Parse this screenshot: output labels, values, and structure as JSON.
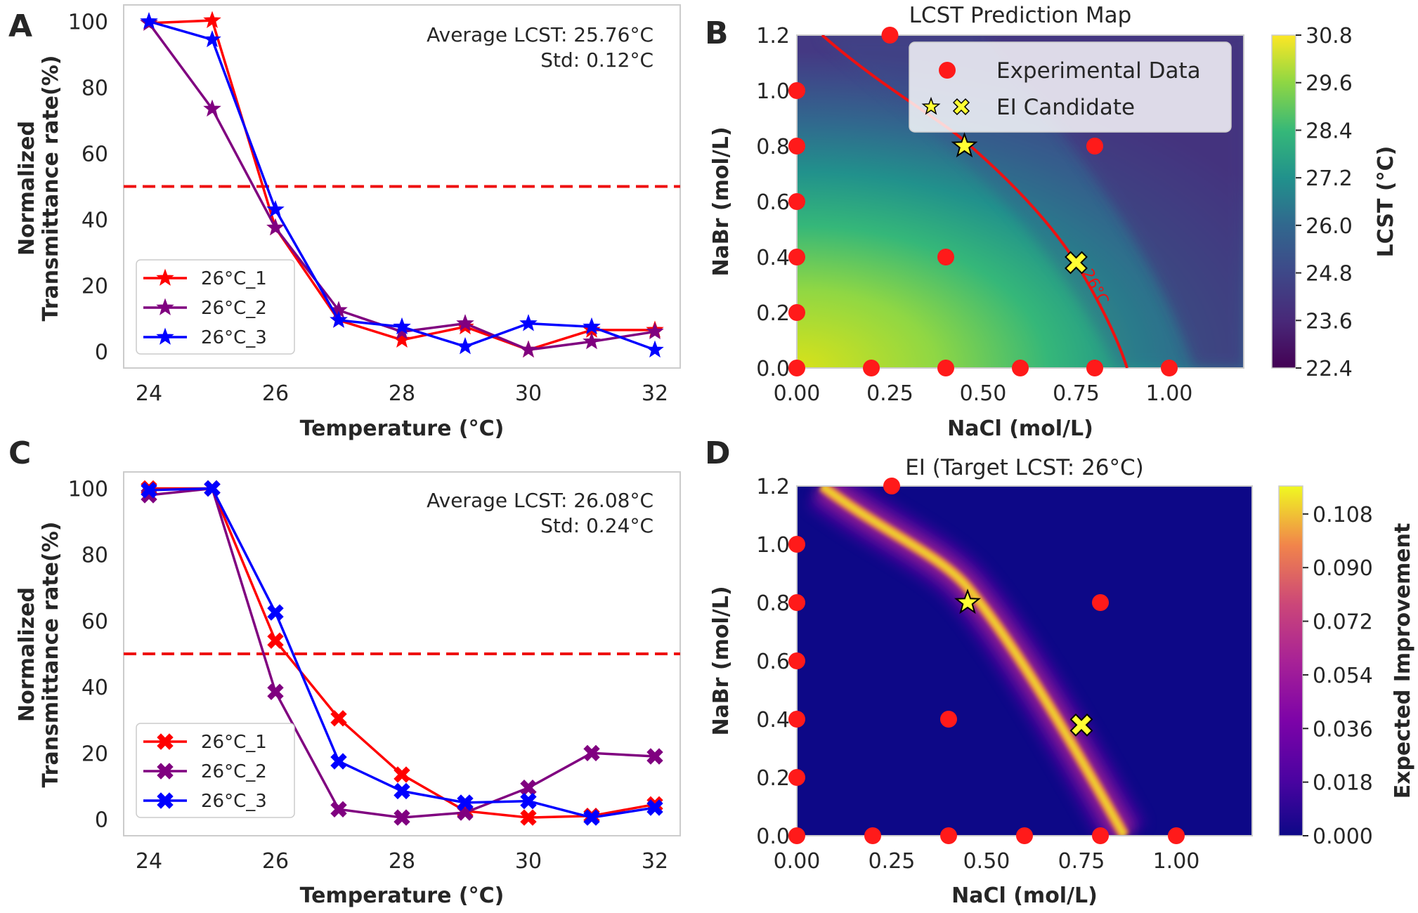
{
  "colors": {
    "red": "#ff0000",
    "purple": "#800080",
    "blue": "#0000ff",
    "ref_line": "#ee1111",
    "marker_data": "#ff1a1a",
    "candidate": "#ffff33"
  },
  "chart_data": [
    {
      "type": "line",
      "panel_label": "A",
      "x": [
        24,
        25,
        26,
        27,
        28,
        29,
        30,
        31,
        32
      ],
      "xlabel": "Temperature (°C)",
      "ylabel_line1": "Normalized",
      "ylabel_line2": "Transmittance rate(%)",
      "xticks": [
        "24",
        "26",
        "28",
        "30",
        "32"
      ],
      "yticks": [
        "0",
        "20",
        "40",
        "60",
        "80",
        "100"
      ],
      "xlim": [
        23.6,
        32.4
      ],
      "ylim": [
        -5,
        105
      ],
      "hline": 50,
      "marker": "star",
      "annotation_line1": "Average LCST: 25.76°C",
      "annotation_line2": "Std: 0.12°C",
      "series": [
        {
          "name": "26°C_1",
          "color": "#ff0000",
          "values": [
            99.5,
            100.3,
            37.5,
            9.5,
            3.5,
            7.5,
            0.5,
            6.5,
            6.5
          ]
        },
        {
          "name": "26°C_2",
          "color": "#800080",
          "values": [
            99.5,
            73.5,
            37.5,
            12.5,
            6,
            8.5,
            0.5,
            3,
            6
          ]
        },
        {
          "name": "26°C_3",
          "color": "#0000ff",
          "values": [
            100,
            94.5,
            43,
            9.5,
            7.5,
            1.5,
            8.5,
            7.5,
            0.5
          ]
        }
      ]
    },
    {
      "type": "line",
      "panel_label": "C",
      "x": [
        24,
        25,
        26,
        27,
        28,
        29,
        30,
        31,
        32
      ],
      "xlabel": "Temperature (°C)",
      "ylabel_line1": "Normalized",
      "ylabel_line2": "Transmittance rate(%)",
      "xticks": [
        "24",
        "26",
        "28",
        "30",
        "32"
      ],
      "yticks": [
        "0",
        "20",
        "40",
        "60",
        "80",
        "100"
      ],
      "xlim": [
        23.6,
        32.4
      ],
      "ylim": [
        -5,
        105
      ],
      "hline": 50,
      "marker": "x",
      "annotation_line1": "Average LCST: 26.08°C",
      "annotation_line2": "Std: 0.24°C",
      "series": [
        {
          "name": "26°C_1",
          "color": "#ff0000",
          "values": [
            100,
            100,
            54,
            30.5,
            13.5,
            2.5,
            0.5,
            1,
            4.5
          ]
        },
        {
          "name": "26°C_2",
          "color": "#800080",
          "values": [
            98,
            100,
            38.5,
            3,
            0.5,
            2,
            9.5,
            20,
            19
          ]
        },
        {
          "name": "26°C_3",
          "color": "#0000ff",
          "values": [
            99.5,
            100,
            62.5,
            17.5,
            8.5,
            5,
            5.5,
            0.5,
            3.5
          ]
        }
      ]
    },
    {
      "type": "contour",
      "panel_label": "B",
      "title": "LCST Prediction Map",
      "xlabel": "NaCl (mol/L)",
      "ylabel": "NaBr (mol/L)",
      "colorbar_label": "LCST (°C)",
      "xticks": [
        "0.00",
        "0.25",
        "0.50",
        "0.75",
        "1.00"
      ],
      "yticks": [
        "0.0",
        "0.2",
        "0.4",
        "0.6",
        "0.8",
        "1.0",
        "1.2"
      ],
      "colorbar_ticks": [
        "22.4",
        "23.6",
        "24.8",
        "26.0",
        "27.2",
        "28.4",
        "29.6",
        "30.8"
      ],
      "xlim": [
        0,
        1.2
      ],
      "ylim": [
        0,
        1.2
      ],
      "contour_label": "26°C",
      "legend": [
        "Experimental Data",
        "EI Candidate"
      ],
      "experimental_points": [
        [
          0,
          0
        ],
        [
          0.2,
          0
        ],
        [
          0.4,
          0
        ],
        [
          0.6,
          0
        ],
        [
          0.8,
          0
        ],
        [
          1.0,
          0
        ],
        [
          0,
          0.2
        ],
        [
          0,
          0.4
        ],
        [
          0,
          0.6
        ],
        [
          0,
          0.8
        ],
        [
          0,
          1.0
        ],
        [
          0.25,
          1.2
        ],
        [
          0.4,
          0.4
        ],
        [
          0.8,
          0.8
        ]
      ],
      "candidates": [
        {
          "marker": "star",
          "x": 0.45,
          "y": 0.8
        },
        {
          "marker": "x",
          "x": 0.75,
          "y": 0.38
        }
      ]
    },
    {
      "type": "heatmap",
      "panel_label": "D",
      "title": "EI (Target LCST: 26°C)",
      "xlabel": "NaCl (mol/L)",
      "ylabel": "NaBr (mol/L)",
      "colorbar_label": "Expected Improvement",
      "xticks": [
        "0.00",
        "0.25",
        "0.50",
        "0.75",
        "1.00"
      ],
      "yticks": [
        "0.0",
        "0.2",
        "0.4",
        "0.6",
        "0.8",
        "1.0",
        "1.2"
      ],
      "colorbar_ticks": [
        "0.000",
        "0.018",
        "0.036",
        "0.054",
        "0.072",
        "0.090",
        "0.108"
      ],
      "xlim": [
        0,
        1.2
      ],
      "ylim": [
        0,
        1.2
      ],
      "experimental_points": [
        [
          0,
          0
        ],
        [
          0.2,
          0
        ],
        [
          0.4,
          0
        ],
        [
          0.6,
          0
        ],
        [
          0.8,
          0
        ],
        [
          1.0,
          0
        ],
        [
          0,
          0.2
        ],
        [
          0,
          0.4
        ],
        [
          0,
          0.6
        ],
        [
          0,
          0.8
        ],
        [
          0,
          1.0
        ],
        [
          0.25,
          1.2
        ],
        [
          0.4,
          0.4
        ],
        [
          0.8,
          0.8
        ]
      ],
      "candidates": [
        {
          "marker": "star",
          "x": 0.45,
          "y": 0.8
        },
        {
          "marker": "x",
          "x": 0.75,
          "y": 0.38
        }
      ]
    }
  ]
}
